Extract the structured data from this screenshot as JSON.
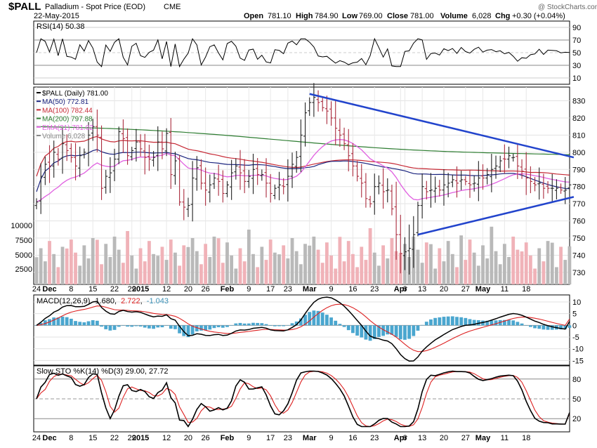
{
  "header": {
    "symbol": "$PALL",
    "name": "Palladium - Spot Price (EOD)",
    "exchange": "CME",
    "date": "22-May-2015",
    "quote": {
      "open_label": "Open",
      "open": "781.10",
      "high_label": "High",
      "high": "784.90",
      "low_label": "Low",
      "low": "769.00",
      "close_label": "Close",
      "close": "781.00",
      "volume_label": "Volume",
      "volume": "6,028",
      "chg_label": "Chg",
      "chg": "+0.30 (+0.04%)"
    },
    "watermark": "@ StockCharts.com"
  },
  "colors": {
    "up": "#222222",
    "down": "#aa2b3d",
    "ma50": "#1a237e",
    "ma100": "#c62834",
    "ma200": "#2e7d32",
    "ema21": "#e060e0",
    "trendline": "#2244cc",
    "vol_up": "#b9b9b9",
    "vol_down": "#f0b2b8",
    "macd_hist": "#4aa6cf",
    "rsi": "#000000",
    "signal": "#dd2222"
  },
  "x_labels": [
    {
      "i": 0,
      "t": "24"
    },
    {
      "i": 3,
      "t": "Dec"
    },
    {
      "i": 8,
      "t": "8"
    },
    {
      "i": 13,
      "t": "15"
    },
    {
      "i": 18,
      "t": "22"
    },
    {
      "i": 22,
      "t": "29"
    },
    {
      "i": 24,
      "t": "2015"
    },
    {
      "i": 30,
      "t": "12"
    },
    {
      "i": 35,
      "t": "20"
    },
    {
      "i": 39,
      "t": "26"
    },
    {
      "i": 44,
      "t": "Feb"
    },
    {
      "i": 49,
      "t": "9"
    },
    {
      "i": 54,
      "t": "17"
    },
    {
      "i": 58,
      "t": "23"
    },
    {
      "i": 63,
      "t": "Mar"
    },
    {
      "i": 68,
      "t": "9"
    },
    {
      "i": 73,
      "t": "16"
    },
    {
      "i": 78,
      "t": "23"
    },
    {
      "i": 84,
      "t": "Apr"
    },
    {
      "i": 85,
      "t": "6"
    },
    {
      "i": 89,
      "t": "13"
    },
    {
      "i": 94,
      "t": "20"
    },
    {
      "i": 99,
      "t": "27"
    },
    {
      "i": 103,
      "t": "May"
    },
    {
      "i": 108,
      "t": "11"
    },
    {
      "i": 113,
      "t": "18"
    }
  ],
  "rsi_panel": {
    "label": "RSI(14) 50.38",
    "ticks": [
      90,
      70,
      50,
      30,
      10
    ]
  },
  "price_panel": {
    "legend": [
      {
        "key": "price",
        "text": "$PALL (Daily) 781.00"
      },
      {
        "key": "ma50",
        "text": "MA(50) 772.81"
      },
      {
        "key": "ma100",
        "text": "MA(100) 782.44"
      },
      {
        "key": "ma200",
        "text": "MA(200) 797.88"
      },
      {
        "key": "ema21",
        "text": "EMA(21) 781.02"
      },
      {
        "key": "vol",
        "text": "Volume 6,028"
      }
    ],
    "ticks": [
      830,
      820,
      810,
      800,
      790,
      780,
      770,
      760,
      750,
      740,
      730
    ],
    "volume_ticks": [
      "10000",
      "7500",
      "5000",
      "2500"
    ]
  },
  "macd_panel": {
    "label": "MACD(12,26,9)",
    "macd": "1.680",
    "signal": "2.722",
    "hist": "-1.043",
    "ticks": [
      10,
      5,
      0,
      -5,
      -10,
      -15
    ]
  },
  "sto_panel": {
    "label": "Slow STO %K(14) %D(3) 29.00, 27.72",
    "ticks": [
      80,
      50,
      20
    ]
  },
  "chart_data": {
    "type": "line",
    "title": "$PALL Palladium - Spot Price (EOD) CME",
    "x_start_label": "24",
    "trading_days": 124,
    "price_close": [
      771,
      786,
      793,
      792,
      800,
      796,
      805,
      801,
      797,
      792,
      798,
      800,
      810,
      815,
      810,
      779,
      786,
      788,
      796,
      812,
      808,
      798,
      801,
      806,
      802,
      797,
      796,
      797,
      806,
      802,
      811,
      787,
      795,
      771,
      768,
      769,
      785,
      791,
      782,
      778,
      781,
      785,
      783,
      776,
      781,
      788,
      792,
      788,
      783,
      786,
      790,
      787,
      787,
      782,
      776,
      779,
      781,
      780,
      786,
      793,
      797,
      810,
      823,
      829,
      832,
      829,
      826,
      824,
      820,
      814,
      810,
      805,
      798,
      792,
      786,
      782,
      773,
      770,
      780,
      782,
      777,
      778,
      767,
      752,
      741,
      742,
      744,
      752,
      769,
      780,
      777,
      778,
      779,
      778,
      781,
      782,
      784,
      782,
      784,
      783,
      781,
      782,
      785,
      785,
      787,
      790,
      792,
      795,
      796,
      798,
      797,
      792,
      789,
      785,
      783,
      781,
      782,
      779,
      779,
      779,
      779,
      778,
      778,
      781
    ],
    "trendlines": [
      {
        "from": {
          "day": 63,
          "price": 834
        },
        "to": {
          "day": 123,
          "price": 797
        }
      },
      {
        "from": {
          "day": 88,
          "price": 752
        },
        "to": {
          "day": 123,
          "price": 774
        }
      }
    ],
    "series": [
      {
        "name": "MA(50)",
        "last": 772.81
      },
      {
        "name": "MA(100)",
        "last": 782.44
      },
      {
        "name": "MA(200)",
        "last": 797.88
      },
      {
        "name": "EMA(21)",
        "last": 781.02
      }
    ],
    "ylim": [
      723,
      838
    ],
    "volume_last": 6028
  }
}
